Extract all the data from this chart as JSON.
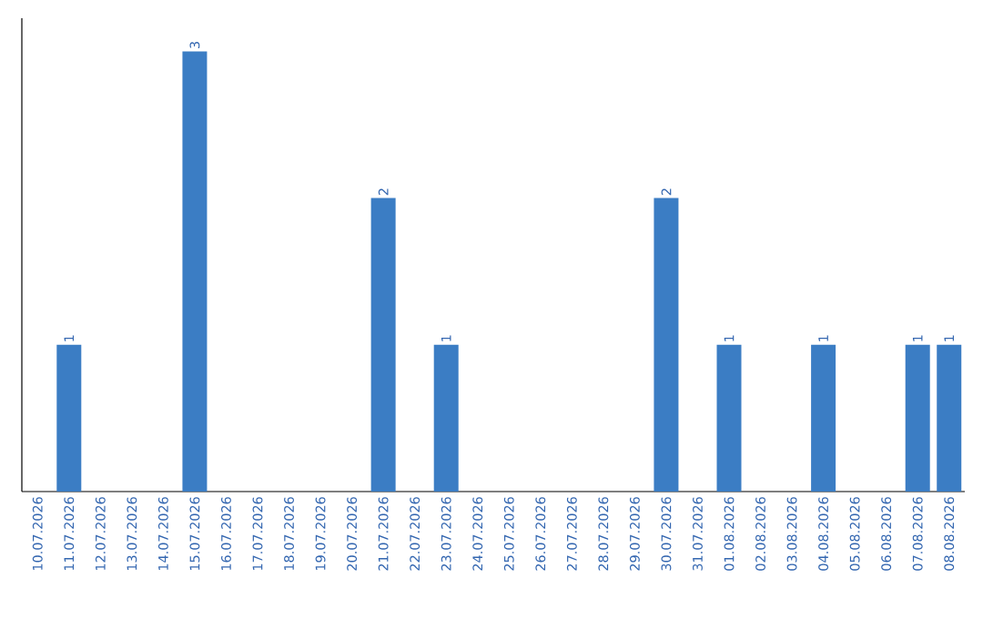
{
  "chart_data": {
    "type": "bar",
    "color": "#3b7dc4",
    "categories": [
      "10.07.2026",
      "11.07.2026",
      "12.07.2026",
      "13.07.2026",
      "14.07.2026",
      "15.07.2026",
      "16.07.2026",
      "17.07.2026",
      "18.07.2026",
      "19.07.2026",
      "20.07.2026",
      "21.07.2026",
      "22.07.2026",
      "23.07.2026",
      "24.07.2026",
      "25.07.2026",
      "26.07.2026",
      "27.07.2026",
      "28.07.2026",
      "29.07.2026",
      "30.07.2026",
      "31.07.2026",
      "01.08.2026",
      "02.08.2026",
      "03.08.2026",
      "04.08.2026",
      "05.08.2026",
      "06.08.2026",
      "07.08.2026",
      "08.08.2026"
    ],
    "values": [
      0,
      1,
      0,
      0,
      0,
      3,
      0,
      0,
      0,
      0,
      0,
      2,
      0,
      1,
      0,
      0,
      0,
      0,
      0,
      0,
      2,
      0,
      1,
      0,
      0,
      1,
      0,
      0,
      1,
      1
    ],
    "value_labels": [
      null,
      "1",
      null,
      null,
      null,
      "3",
      null,
      null,
      null,
      null,
      null,
      "2",
      null,
      "1",
      null,
      null,
      null,
      null,
      null,
      null,
      "2",
      null,
      "1",
      null,
      null,
      "1",
      null,
      null,
      "1",
      "1"
    ]
  }
}
